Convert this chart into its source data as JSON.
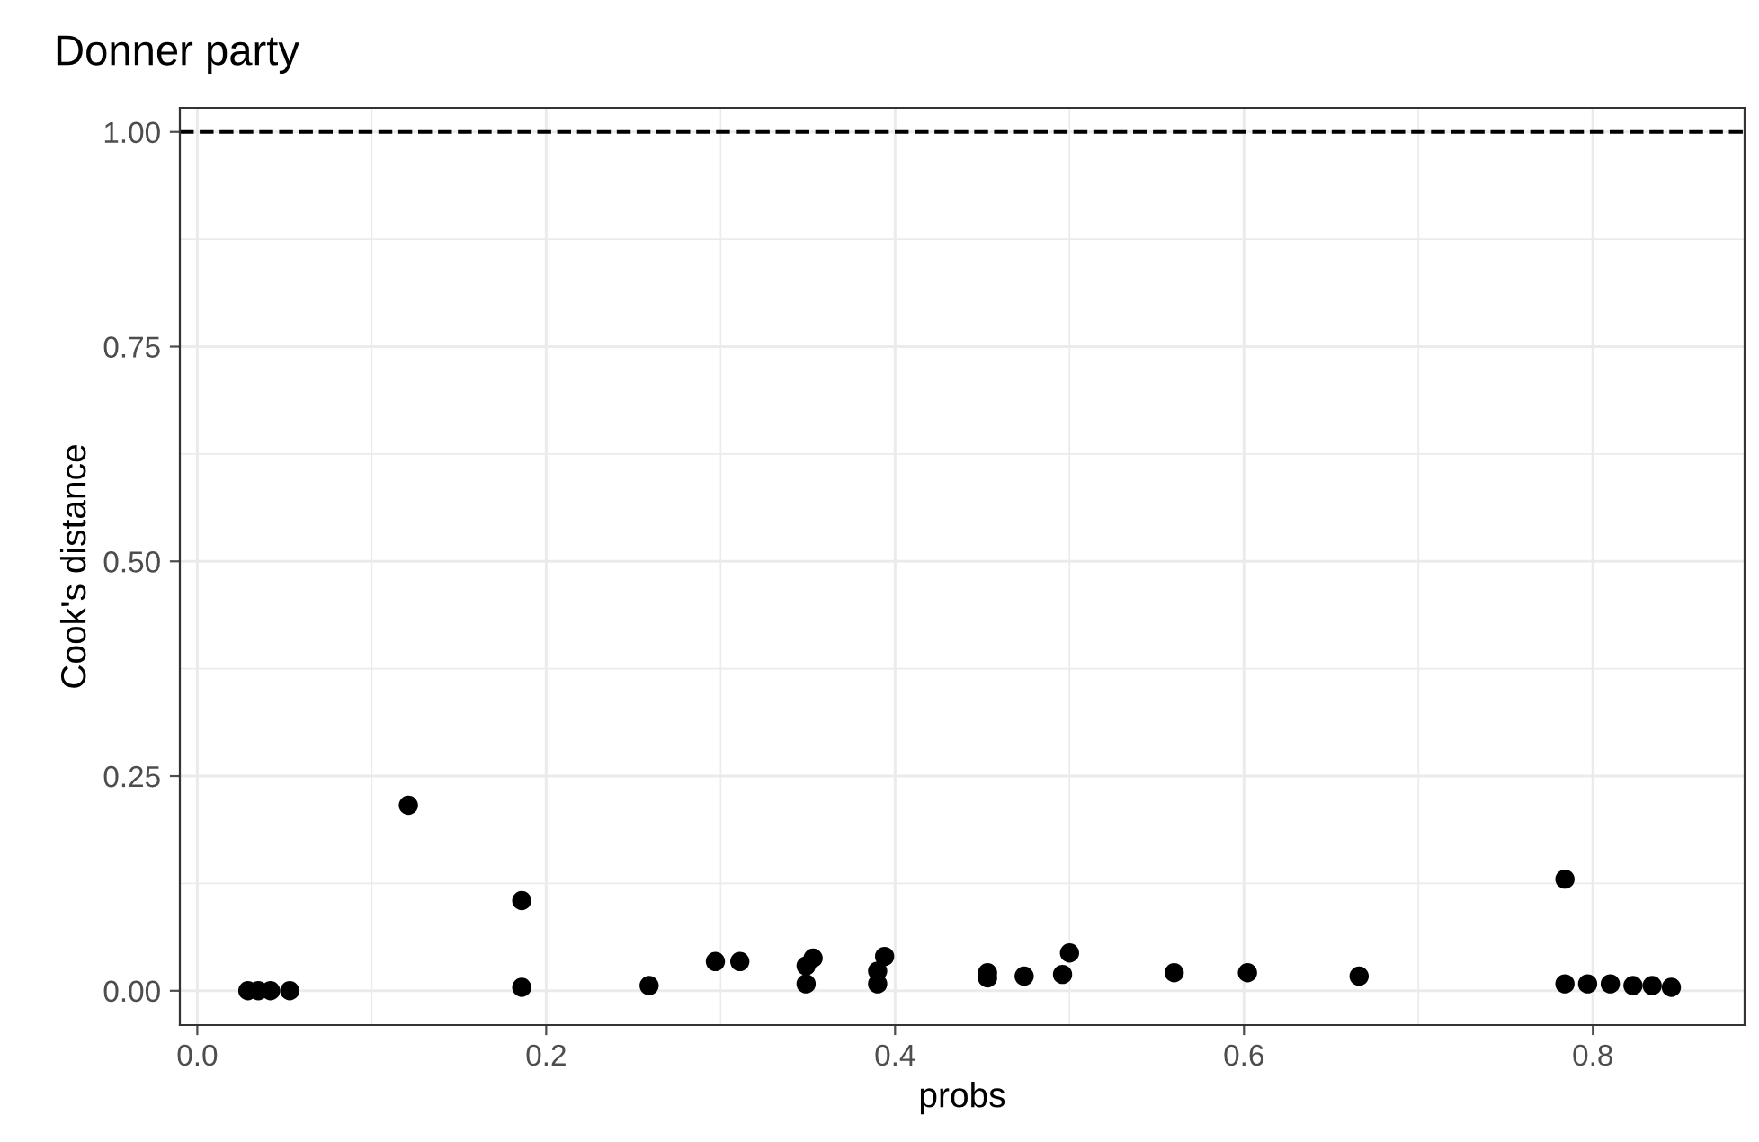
{
  "chart_data": {
    "type": "scatter",
    "title": "Donner party",
    "xlabel": "probs",
    "ylabel": "Cook's distance",
    "x": [
      0.029,
      0.035,
      0.042,
      0.053,
      0.121,
      0.186,
      0.186,
      0.259,
      0.297,
      0.311,
      0.349,
      0.349,
      0.353,
      0.39,
      0.39,
      0.394,
      0.453,
      0.453,
      0.474,
      0.496,
      0.5,
      0.56,
      0.602,
      0.666,
      0.784,
      0.784,
      0.797,
      0.81,
      0.823,
      0.834,
      0.845
    ],
    "series": [
      {
        "color": "#000000",
        "values": [
          0.0,
          0.0,
          0.0,
          0.0,
          0.216,
          0.105,
          0.004,
          0.006,
          0.034,
          0.034,
          0.008,
          0.029,
          0.038,
          0.008,
          0.023,
          0.04,
          0.015,
          0.021,
          0.017,
          0.019,
          0.044,
          0.021,
          0.021,
          0.017,
          0.13,
          0.008,
          0.008,
          0.008,
          0.006,
          0.006,
          0.004
        ]
      }
    ],
    "xlim": [
      -0.01,
      0.887
    ],
    "ylim": [
      -0.04,
      1.028
    ],
    "xticks": [
      {
        "value": 0,
        "label": "0.0"
      },
      0.2,
      0.4,
      0.6,
      0.8
    ],
    "yticks": [
      {
        "value": 0,
        "label": "0.00"
      },
      0.25,
      {
        "value": 0.5,
        "label": "0.50"
      },
      0.75,
      {
        "value": 1,
        "label": "1.00"
      }
    ],
    "ref_lines": [
      {
        "axis": "y",
        "value": 1,
        "color": "#000000",
        "line_style": "dashed"
      }
    ],
    "grid": true,
    "marker": "circle"
  }
}
